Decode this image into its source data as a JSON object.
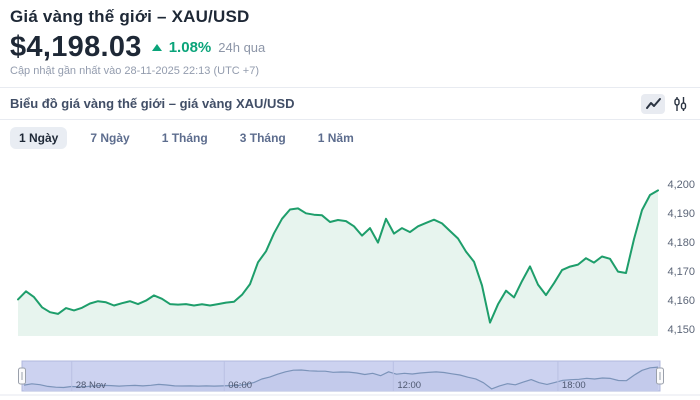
{
  "header": {
    "title": "Giá vàng thế giới – XAU/USD",
    "price": "$4,198.03",
    "change_percent": "1.08%",
    "change_direction": "up",
    "change_period": "24h qua",
    "updated": "Cập nhật gần nhất vào 28-11-2025 22:13 (UTC +7)"
  },
  "chart_header": {
    "title": "Biểu đồ giá vàng thế giới – giá vàng XAU/USD",
    "active_chart_type": "line",
    "icons": [
      "line-chart-icon",
      "candlestick-chart-icon"
    ]
  },
  "tabs": [
    {
      "label": "1 Ngày",
      "active": true
    },
    {
      "label": "7 Ngày",
      "active": false
    },
    {
      "label": "1 Tháng",
      "active": false
    },
    {
      "label": "3 Tháng",
      "active": false
    },
    {
      "label": "1 Năm",
      "active": false
    }
  ],
  "colors": {
    "accent_green": "#0aa47a",
    "line": "#1e9e6b",
    "fill": "#e7f4ee",
    "text_dark": "#1e2836",
    "text_muted": "#8d96a8",
    "navigator_bg": "#ccd2f0",
    "navigator_fill": "#c3caeb",
    "navigator_line": "#7b93b9",
    "navigator_grid": "#b9c0e3",
    "navigator_border": "#b0b8de"
  },
  "chart_data": {
    "type": "area",
    "title": "Biểu đồ giá vàng thế giới – giá vàng XAU/USD",
    "series_name": "XAU/USD",
    "grid": "off",
    "legend": "none",
    "y_ticks": [
      "4,200",
      "4,190",
      "4,180",
      "4,170",
      "4,160",
      "4,150"
    ],
    "y_tick_values": [
      4200,
      4190,
      4180,
      4170,
      4160,
      4150
    ],
    "ylim": [
      4148,
      4203
    ],
    "x_axis": "time (1 day), navigator below with ticks",
    "navigator_ticks": [
      {
        "label": "28 Nov",
        "f": 0.078
      },
      {
        "label": "06:00",
        "f": 0.317
      },
      {
        "label": "12:00",
        "f": 0.582
      },
      {
        "label": "18:00",
        "f": 0.84
      }
    ],
    "values": [
      4160.2,
      4163.0,
      4161.0,
      4157.5,
      4155.8,
      4155.2,
      4157.2,
      4156.4,
      4157.3,
      4158.8,
      4159.6,
      4159.2,
      4158.1,
      4158.9,
      4159.6,
      4158.6,
      4159.8,
      4161.6,
      4160.4,
      4158.6,
      4158.4,
      4158.6,
      4158.1,
      4158.5,
      4158.1,
      4158.6,
      4159.1,
      4159.4,
      4161.8,
      4165.5,
      4173.0,
      4176.8,
      4183.0,
      4188.0,
      4191.2,
      4191.6,
      4189.9,
      4189.4,
      4189.2,
      4186.9,
      4187.6,
      4187.2,
      4185.4,
      4182.2,
      4184.8,
      4179.8,
      4188.0,
      4182.9,
      4184.8,
      4183.4,
      4185.4,
      4186.6,
      4187.7,
      4186.4,
      4183.8,
      4181.2,
      4176.7,
      4173.2,
      4165.0,
      4152.2,
      4158.5,
      4163.2,
      4160.9,
      4166.5,
      4171.6,
      4165.3,
      4161.7,
      4165.8,
      4170.3,
      4171.5,
      4172.2,
      4174.4,
      4172.9,
      4175.0,
      4174.2,
      4169.8,
      4169.3,
      4181.0,
      4191.0,
      4196.2,
      4197.8
    ]
  }
}
